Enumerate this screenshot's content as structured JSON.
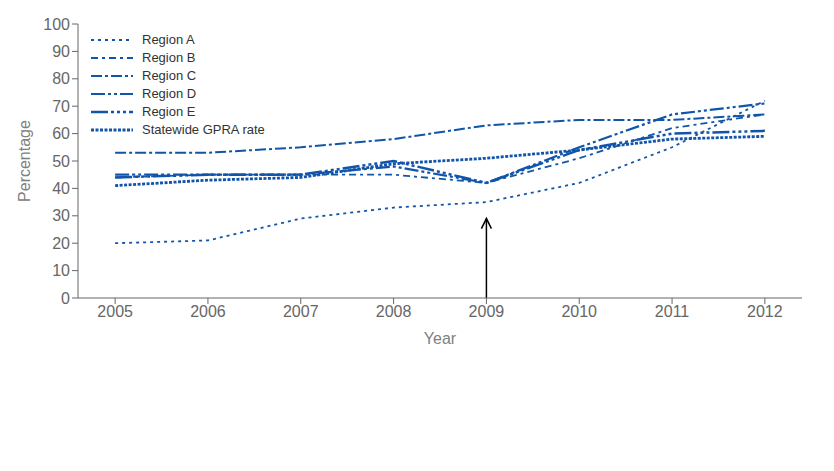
{
  "chart_data": {
    "type": "line",
    "xlabel": "Year",
    "ylabel": "Percentage",
    "x": [
      2005,
      2006,
      2007,
      2008,
      2009,
      2010,
      2011,
      2012
    ],
    "series": [
      {
        "name": "Region A",
        "color": "#1155aa",
        "line_style": "dotted",
        "values": [
          20,
          21,
          29,
          33,
          35,
          42,
          55,
          72
        ]
      },
      {
        "name": "Region B",
        "color": "#1155aa",
        "line_style": "dashdot",
        "values": [
          44,
          45,
          45,
          45,
          42,
          51,
          62,
          67
        ]
      },
      {
        "name": "Region C",
        "color": "#1155aa",
        "line_style": "longdashdot",
        "values": [
          53,
          53,
          55,
          58,
          63,
          65,
          65,
          67
        ]
      },
      {
        "name": "Region D",
        "color": "#1155aa",
        "line_style": "longdashdotdot",
        "values": [
          45,
          45,
          45,
          48,
          42,
          55,
          67,
          71
        ]
      },
      {
        "name": "Region E",
        "color": "#1155aa",
        "line_style": "longdashdotdotdot",
        "values": [
          44,
          45,
          45,
          50,
          42,
          54,
          60,
          61
        ]
      },
      {
        "name": "Statewide GPRA rate",
        "color": "#1155aa",
        "line_style": "densedotted",
        "values": [
          41,
          43,
          44,
          49,
          51,
          54,
          58,
          59
        ]
      }
    ],
    "annotations": [
      {
        "type": "arrow",
        "x": 2009,
        "y_from": 0,
        "y_to": 29
      }
    ],
    "xlim": [
      2004.6,
      2012.4
    ],
    "xticks": [
      2005,
      2006,
      2007,
      2008,
      2009,
      2010,
      2011,
      2012
    ],
    "ylim": [
      0,
      100
    ],
    "yticks": [
      0,
      10,
      20,
      30,
      40,
      50,
      60,
      70,
      80,
      90,
      100
    ],
    "grid": false,
    "legend": "upper left"
  }
}
